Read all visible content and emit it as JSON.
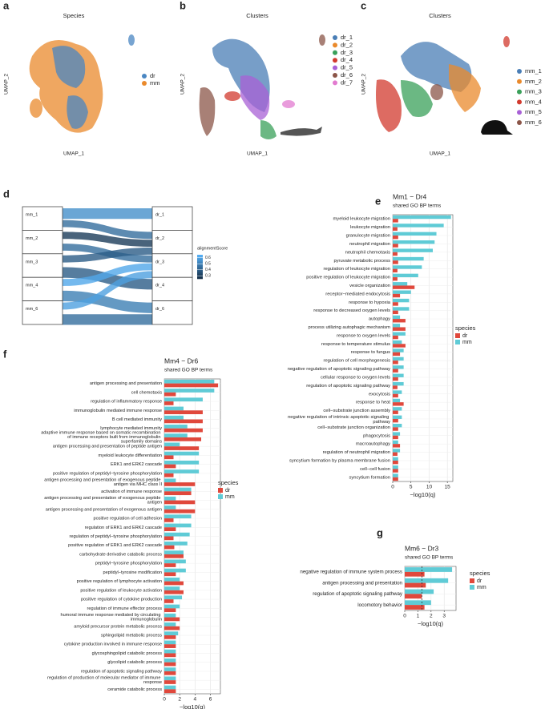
{
  "chart_data": [
    {
      "type": "scatter",
      "panel": "a",
      "title": "Species",
      "xlabel": "UMAP_1",
      "ylabel": "UMAP_2",
      "series": [
        {
          "name": "dr",
          "color": "#4a86c2"
        },
        {
          "name": "mm",
          "color": "#ea8a2c"
        }
      ]
    },
    {
      "type": "scatter",
      "panel": "b",
      "title": "Clusters",
      "xlabel": "UMAP_1",
      "ylabel": "UMAP_2",
      "series": [
        {
          "name": "dr_1",
          "color": "#4a7eb6"
        },
        {
          "name": "dr_2",
          "color": "#ea8a2c"
        },
        {
          "name": "dr_3",
          "color": "#3aa05a"
        },
        {
          "name": "dr_4",
          "color": "#d23a2e"
        },
        {
          "name": "dr_5",
          "color": "#a860d6"
        },
        {
          "name": "dr_6",
          "color": "#8b5548"
        },
        {
          "name": "dr_7",
          "color": "#e27bd0"
        }
      ]
    },
    {
      "type": "scatter",
      "panel": "c",
      "title": "Clusters",
      "xlabel": "UMAP_1",
      "ylabel": "UMAP_2",
      "series": [
        {
          "name": "mm_1",
          "color": "#4a7eb6"
        },
        {
          "name": "mm_2",
          "color": "#ea8a2c"
        },
        {
          "name": "mm_3",
          "color": "#3aa05a"
        },
        {
          "name": "mm_4",
          "color": "#d23a2e"
        },
        {
          "name": "mm_5",
          "color": "#a860d6"
        },
        {
          "name": "mm_6",
          "color": "#8b5548"
        }
      ]
    },
    {
      "type": "sankey",
      "panel": "d",
      "legend_title": "alignmentScore",
      "left": [
        "mm_1",
        "mm_2",
        "mm_3",
        "mm_4",
        "mm_6"
      ],
      "right": [
        "dr_1",
        "dr_2",
        "dr_3",
        "dr_4",
        "dr_6"
      ],
      "links": [
        {
          "source": 0,
          "target": 0,
          "score": 0.55
        },
        {
          "source": 0,
          "target": 1,
          "score": 0.45
        },
        {
          "source": 1,
          "target": 1,
          "score": 0.3
        },
        {
          "source": 1,
          "target": 2,
          "score": 0.45
        },
        {
          "source": 2,
          "target": 1,
          "score": 0.4
        },
        {
          "source": 2,
          "target": 3,
          "score": 0.4
        },
        {
          "source": 3,
          "target": 2,
          "score": 0.62
        },
        {
          "source": 3,
          "target": 4,
          "score": 0.5
        },
        {
          "source": 4,
          "target": 2,
          "score": 0.6
        },
        {
          "source": 4,
          "target": 4,
          "score": 0.45
        }
      ],
      "clim": [
        0.25,
        0.65
      ],
      "cticks": [
        0.3,
        0.4,
        0.5,
        0.6
      ]
    },
    {
      "type": "bar",
      "panel": "e",
      "title": "Mm1 − Dr4",
      "subtitle": "shared GO BP terms",
      "xlabel": "−log10(q)",
      "legend_title": "species",
      "categories": [
        "myeloid leukocyte migration",
        "leukocyte migration",
        "granulocyte migration",
        "neutrophil migration",
        "neutrophil chemotaxis",
        "pyruvate metabolic process",
        "regulation of leukocyte migration",
        "positive regulation of leukocyte migration",
        "vesicle organization",
        "receptor−mediated endocytosis",
        "response to hypoxia",
        "response to decreased oxygen levels",
        "autophagy",
        "process utilizing autophagic mechanism",
        "response to oxygen levels",
        "response to temperature stimulus",
        "response to fungus",
        "regulation of cell morphogenesis",
        "negative regulation of apoptotic signaling pathway",
        "cellular response to oxygen levels",
        "regulation of apoptotic signaling pathway",
        "exocytosis",
        "response to heat",
        "cell−substrate junction assembly",
        "negative regulation of intrinsic apoptotic signaling pathway",
        "cell−substrate junction organization",
        "phagocytosis",
        "macroautophagy",
        "regulation of neutrophil migration",
        "syncytium formation by plasma membrane fusion",
        "cell−cell fusion",
        "syncytium formation"
      ],
      "series": [
        {
          "name": "dr",
          "color": "#e0483c",
          "values": [
            1.5,
            1.3,
            1.5,
            1.5,
            1.3,
            1.5,
            1.3,
            1.3,
            6,
            2,
            1.5,
            1.5,
            3.5,
            3.5,
            1.5,
            3.5,
            2,
            1.5,
            1.5,
            1.5,
            1.3,
            1.5,
            3,
            1.5,
            1.5,
            1.5,
            1.5,
            2,
            1.3,
            1.5,
            1.5,
            1.5
          ]
        },
        {
          "name": "mm",
          "color": "#5fcbd6",
          "values": [
            16,
            14,
            12,
            11.5,
            11,
            8.5,
            8,
            7,
            4,
            5,
            4.5,
            4.5,
            2,
            2,
            3.5,
            2.5,
            3,
            3,
            3,
            3,
            3,
            2.5,
            2,
            2.5,
            2.5,
            2.5,
            2,
            1.5,
            2,
            1.5,
            1.5,
            1.5
          ]
        }
      ],
      "xlim": [
        0,
        16.5
      ],
      "xticks": [
        0,
        5,
        10,
        15
      ],
      "grid": true
    },
    {
      "type": "bar",
      "panel": "f",
      "title": "Mm4 − Dr6",
      "subtitle": "shared GO BP terms",
      "xlabel": "−log10(q)",
      "legend_title": "species",
      "categories": [
        "antigen processing and presentation",
        "cell chemotaxis",
        "regulation of inflammatory response",
        "immunoglobulin mediated immune response",
        "B cell mediated immunity",
        "lymphocyte mediated immunity",
        "adaptive immune response based on somatic recombination of immune receptors built from immunoglobulin superfamily domains",
        "antigen processing and presentation of peptide antigen",
        "myeloid leukocyte differentiation",
        "ERK1 and ERK2 cascade",
        "positive regulation of peptidyl−tyrosine phosphorylation",
        "antigen processing and presentation of exogenous peptide antigen via MHC class II",
        "activation of immune response",
        "antigen processing and presentation of exogenous peptide antigen",
        "antigen processing and presentation of exogenous antigen",
        "positive regulation of cell adhesion",
        "regulation of ERK1 and ERK2 cascade",
        "regulation of peptidyl−tyrosine phosphorylation",
        "positive regulation of ERK1 and ERK2 cascade",
        "carbohydrate derivative catabolic process",
        "peptidyl−tyrosine phosphorylation",
        "peptidyl−tyrosine modification",
        "positive regulation of lymphocyte activation",
        "positive regulation of leukocyte activation",
        "positive regulation of cytokine production",
        "regulation of immune effector process",
        "humoral immune response mediated by circulating immunoglobulin",
        "amyloid precursor protein metabolic process",
        "sphingolipid metabolic process",
        "cytokine production involved in immune response",
        "glycosphingolipid catabolic process",
        "glycolipid catabolic process",
        "regulation of apoptotic signaling pathway",
        "regulation of production of molecular mediator of immune response",
        "ceramide catabolic process"
      ],
      "series": [
        {
          "name": "dr",
          "color": "#e0483c",
          "values": [
            7,
            1.5,
            1.2,
            5,
            5,
            5,
            4.8,
            4.5,
            1.2,
            1.5,
            1.2,
            4,
            3.5,
            4,
            4,
            1.2,
            1.5,
            1.2,
            1.3,
            2.5,
            1.5,
            1.5,
            2.5,
            2.5,
            1.2,
            1.5,
            2,
            2,
            1.5,
            1.5,
            1.5,
            1.5,
            1.5,
            1.5,
            1.5
          ]
        },
        {
          "name": "mm",
          "color": "#5fcbd6",
          "values": [
            6.5,
            6.5,
            5,
            2.5,
            2.5,
            3,
            3,
            2,
            4.5,
            4.5,
            4.5,
            1.5,
            3.5,
            1.5,
            1.5,
            3.5,
            3.5,
            3.3,
            3,
            2.5,
            2.8,
            2.8,
            2,
            2,
            2.3,
            2,
            1.5,
            1.5,
            1.8,
            1.5,
            1.5,
            1.5,
            1.5,
            1.5,
            1.5
          ]
        }
      ],
      "xlim": [
        0,
        7.3
      ],
      "xticks": [
        0,
        2,
        4,
        6
      ],
      "grid": true
    },
    {
      "type": "bar",
      "panel": "g",
      "title": "Mm6 − Dr3",
      "subtitle": "shared GO BP terms",
      "xlabel": "−log10(q)",
      "legend_title": "species",
      "categories": [
        "negative regulation of immune system process",
        "antigen processing and presentation",
        "regulation of apoptotic signaling pathway",
        "locomotory behavior"
      ],
      "series": [
        {
          "name": "dr",
          "color": "#e0483c",
          "values": [
            1.5,
            1.6,
            1.3,
            1.5
          ]
        },
        {
          "name": "mm",
          "color": "#5fcbd6",
          "values": [
            3.6,
            3.3,
            2.2,
            2
          ]
        }
      ],
      "xlim": [
        0,
        3.9
      ],
      "xticks": [
        0,
        1,
        2,
        3
      ],
      "threshold": 1.3,
      "grid": true
    }
  ]
}
